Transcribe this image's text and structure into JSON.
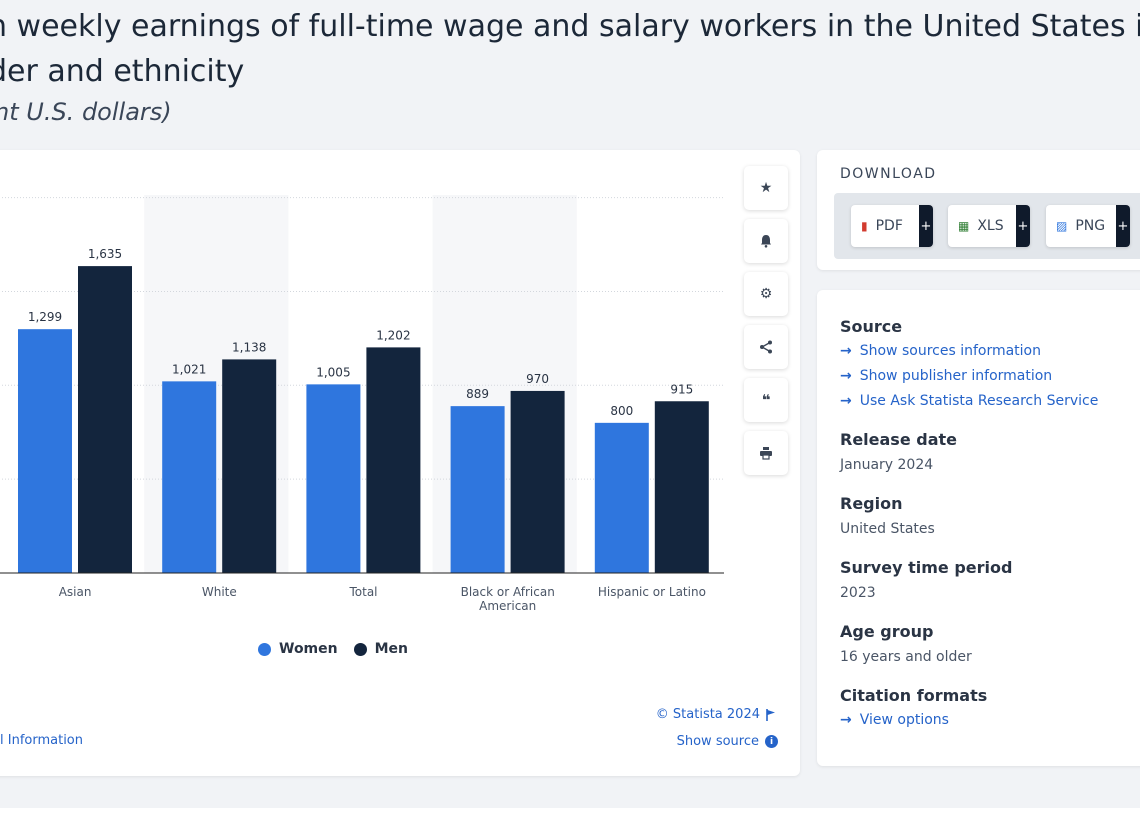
{
  "header": {
    "title_line1": "n weekly earnings of full-time wage and salary workers in the United States in",
    "title_line2": "der and ethnicity",
    "subtitle": "nt U.S. dollars)"
  },
  "chart_data": {
    "type": "bar",
    "categories": [
      "Asian",
      "White",
      "Total",
      "Black or African American",
      "Hispanic or Latino"
    ],
    "category_lines": [
      [
        "Asian"
      ],
      [
        "White"
      ],
      [
        "Total"
      ],
      [
        "Black or African",
        "American"
      ],
      [
        "Hispanic or Latino"
      ]
    ],
    "series": [
      {
        "name": "Women",
        "color": "#2f76de",
        "values": [
          1299,
          1021,
          1005,
          889,
          800
        ]
      },
      {
        "name": "Men",
        "color": "#13253d",
        "values": [
          1635,
          1138,
          1202,
          970,
          915
        ]
      }
    ],
    "value_labels": [
      [
        "1,299",
        "1,021",
        "1,005",
        "889",
        "800"
      ],
      [
        "1,635",
        "1,138",
        "1,202",
        "970",
        "915"
      ]
    ],
    "ylim": [
      0,
      2000
    ],
    "grid": true,
    "legend_position": "bottom"
  },
  "toolbar": {
    "icons": [
      "star-icon",
      "bell-icon",
      "gear-icon",
      "share-icon",
      "quote-icon",
      "print-icon"
    ]
  },
  "footer": {
    "copyright": "© Statista 2024",
    "show_source": "Show source",
    "additional_info": "l Information"
  },
  "download": {
    "title": "DOWNLOAD",
    "buttons": [
      {
        "label": "PDF",
        "icon": "pdf-icon",
        "plus": "+"
      },
      {
        "label": "XLS",
        "icon": "xls-icon",
        "plus": "+"
      },
      {
        "label": "PNG",
        "icon": "png-icon",
        "plus": "+"
      }
    ]
  },
  "info": {
    "source_title": "Source",
    "source_links": [
      "Show sources information",
      "Show publisher information",
      "Use Ask Statista Research Service"
    ],
    "release_title": "Release date",
    "release_value": "January 2024",
    "region_title": "Region",
    "region_value": "United States",
    "survey_title": "Survey time period",
    "survey_value": "2023",
    "age_title": "Age group",
    "age_value": "16 years and older",
    "citation_title": "Citation formats",
    "citation_link": "View options"
  },
  "colors": {
    "accent": "#2563c9",
    "women": "#2f76de",
    "men": "#13253d"
  }
}
